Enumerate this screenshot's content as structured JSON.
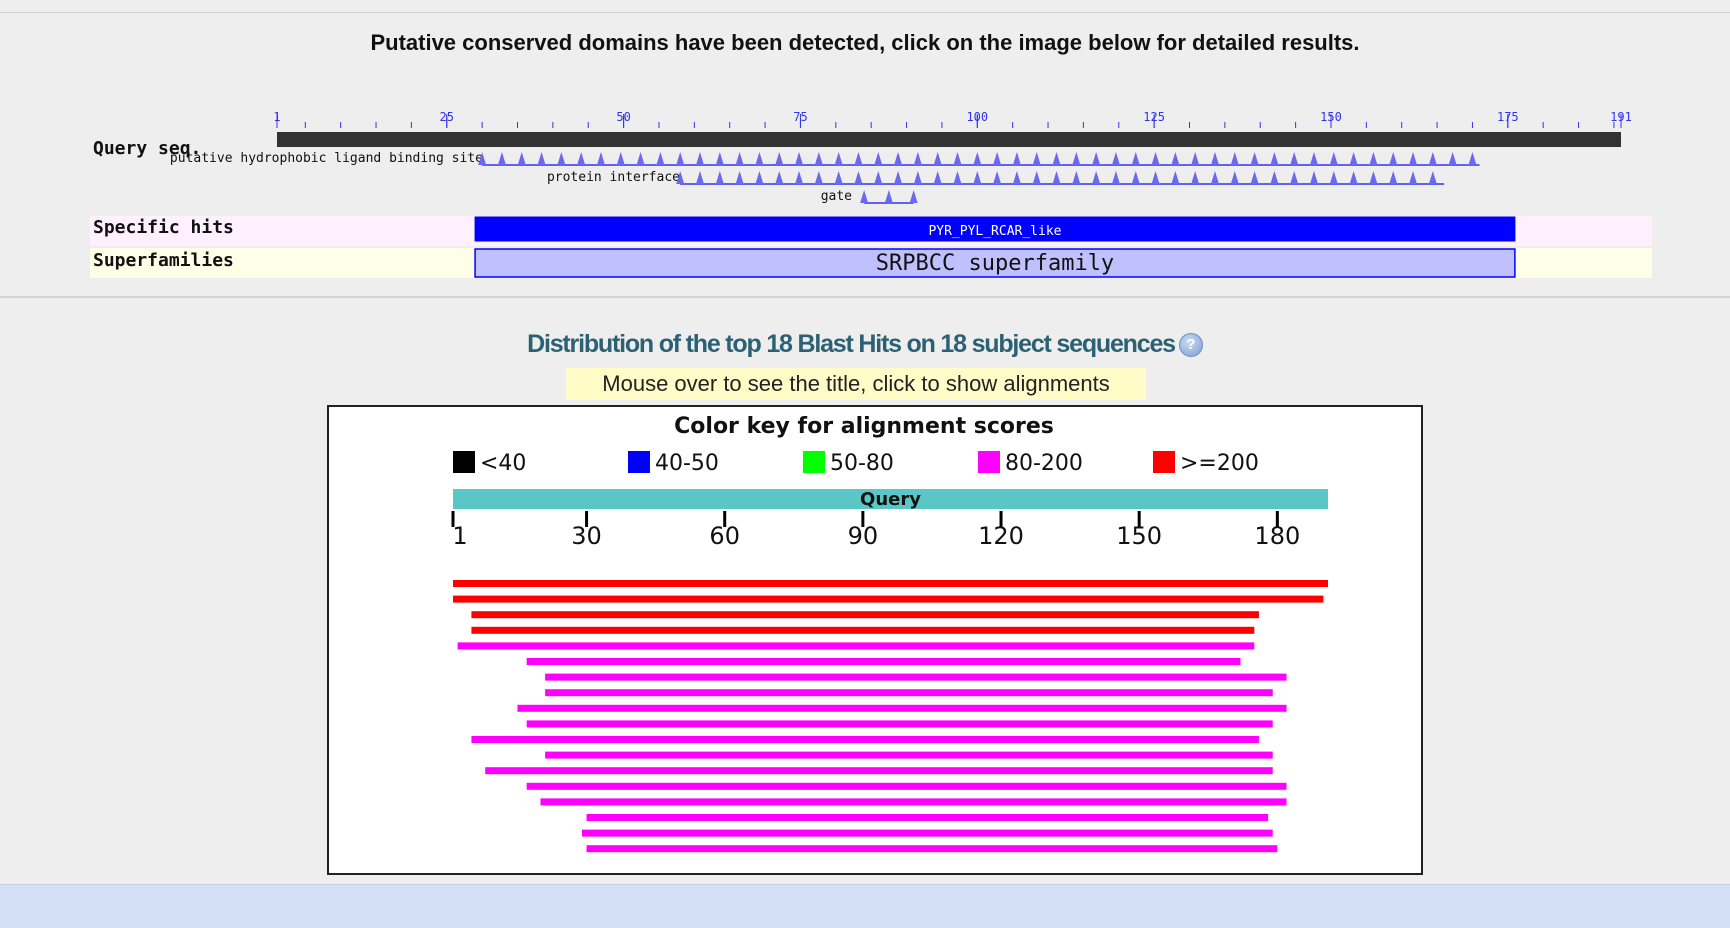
{
  "header": {
    "message": "Putative conserved domains have been detected, click on the image below for detailed results."
  },
  "cdd": {
    "query_label": "Query seq.",
    "query_length": 191,
    "ruler_labels": [
      "1",
      "25",
      "50",
      "75",
      "100",
      "125",
      "150",
      "175",
      "191"
    ],
    "features": [
      {
        "label": "putative hydrophobic ligand binding site",
        "start": 30,
        "end": 171
      },
      {
        "label": "protein interface",
        "start": 58,
        "end": 166
      },
      {
        "label": "gate",
        "start": 84,
        "end": 91
      }
    ],
    "specific_hits_label": "Specific hits",
    "specific_hit": {
      "name": "PYR_PYL_RCAR_like",
      "start": 29,
      "end": 176
    },
    "superfamilies_label": "Superfamilies",
    "superfamily": {
      "name": "SRPBCC superfamily",
      "start": 29,
      "end": 176
    },
    "colors": {
      "query_bar": "#333333",
      "feature": "#3333ee",
      "specific_hit": "#0000ff",
      "superfamily_fill": "#c0c0ff",
      "specific_row_bg": "#fff0ff",
      "superfamily_row_bg": "#ffffe8"
    }
  },
  "distribution": {
    "title": "Distribution of the top 18 Blast Hits on 18 subject sequences",
    "help_icon": "help-icon",
    "hint": "Mouse over to see the title, click to show alignments"
  },
  "alignment_graphic": {
    "color_key_title": "Color key for alignment scores",
    "legend": [
      {
        "label": "<40",
        "color": "#000000"
      },
      {
        "label": "40-50",
        "color": "#0000ff"
      },
      {
        "label": "50-80",
        "color": "#00ff00"
      },
      {
        "label": "80-200",
        "color": "#ff00ff"
      },
      {
        "label": ">=200",
        "color": "#ff0000"
      }
    ],
    "query_label": "Query",
    "query_color": "#5bc6c6",
    "query_length": 191,
    "ticks": [
      "1",
      "30",
      "60",
      "90",
      "120",
      "150",
      "180"
    ],
    "hits": [
      {
        "start": 1,
        "end": 191,
        "color": "#ff0000"
      },
      {
        "start": 1,
        "end": 190,
        "color": "#ff0000"
      },
      {
        "start": 5,
        "end": 176,
        "color": "#ff0000"
      },
      {
        "start": 5,
        "end": 175,
        "color": "#ff0000"
      },
      {
        "start": 2,
        "end": 175,
        "color": "#ff00ff"
      },
      {
        "start": 17,
        "end": 172,
        "color": "#ff00ff"
      },
      {
        "start": 21,
        "end": 182,
        "color": "#ff00ff"
      },
      {
        "start": 21,
        "end": 179,
        "color": "#ff00ff"
      },
      {
        "start": 15,
        "end": 182,
        "color": "#ff00ff"
      },
      {
        "start": 17,
        "end": 179,
        "color": "#ff00ff"
      },
      {
        "start": 5,
        "end": 176,
        "color": "#ff00ff"
      },
      {
        "start": 21,
        "end": 179,
        "color": "#ff00ff"
      },
      {
        "start": 8,
        "end": 179,
        "color": "#ff00ff"
      },
      {
        "start": 17,
        "end": 182,
        "color": "#ff00ff"
      },
      {
        "start": 20,
        "end": 182,
        "color": "#ff00ff"
      },
      {
        "start": 30,
        "end": 178,
        "color": "#ff00ff"
      },
      {
        "start": 29,
        "end": 179,
        "color": "#ff00ff"
      },
      {
        "start": 30,
        "end": 180,
        "color": "#ff00ff"
      }
    ]
  }
}
